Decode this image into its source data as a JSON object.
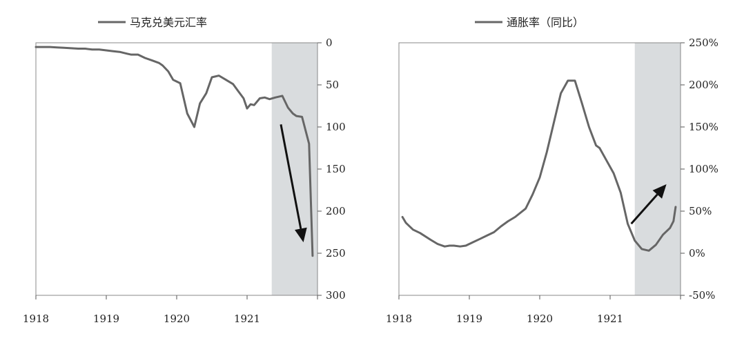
{
  "chart_data": [
    {
      "type": "line",
      "title": "",
      "xlabel": "",
      "ylabel": "",
      "x_ticks": [
        "1918",
        "1919",
        "1920",
        "1921"
      ],
      "xlim": [
        1918,
        1922
      ],
      "y_axis_side": "right",
      "y_inverted": true,
      "ylim": [
        0,
        300
      ],
      "y_ticks": [
        0,
        50,
        100,
        150,
        200,
        250,
        300
      ],
      "y_tick_labels": [
        "0",
        "50",
        "100",
        "150",
        "200",
        "250",
        "300"
      ],
      "grid": false,
      "legend_position": "top-center",
      "shaded_region": [
        1921.35,
        1922
      ],
      "annotations": [
        {
          "type": "arrow",
          "direction": "down",
          "from": [
            1921.48,
            97
          ],
          "to": [
            1921.8,
            237
          ]
        }
      ],
      "series": [
        {
          "name": "马克兑美元汇率",
          "color": "#666666",
          "x": [
            1918.0,
            1918.1,
            1918.2,
            1918.3,
            1918.4,
            1918.5,
            1918.6,
            1918.7,
            1918.8,
            1918.85,
            1918.9,
            1919.0,
            1919.1,
            1919.2,
            1919.3,
            1919.35,
            1919.45,
            1919.55,
            1919.65,
            1919.75,
            1919.8,
            1919.88,
            1919.95,
            1920.05,
            1920.15,
            1920.25,
            1920.33,
            1920.42,
            1920.5,
            1920.6,
            1920.7,
            1920.8,
            1920.87,
            1920.95,
            1921.0,
            1921.05,
            1921.1,
            1921.18,
            1921.25,
            1921.32,
            1921.4,
            1921.5,
            1921.58,
            1921.65,
            1921.7,
            1921.78,
            1921.88,
            1921.93
          ],
          "values": [
            5,
            5,
            5,
            5.5,
            6,
            6.5,
            7,
            7,
            8,
            8,
            8,
            9,
            10,
            11,
            13,
            14,
            14,
            18,
            21,
            24,
            27,
            34,
            44,
            48,
            84,
            100,
            72,
            60,
            41,
            39,
            44,
            49,
            57,
            66,
            78,
            73,
            74,
            66,
            65,
            67,
            65,
            63,
            77,
            84,
            87,
            88,
            120,
            253
          ]
        }
      ]
    },
    {
      "type": "line",
      "title": "",
      "xlabel": "",
      "ylabel": "",
      "x_ticks": [
        "1918",
        "1919",
        "1920",
        "1921"
      ],
      "xlim": [
        1918,
        1922
      ],
      "y_axis_side": "right",
      "ylim": [
        -50,
        250
      ],
      "y_ticks": [
        -50,
        0,
        50,
        100,
        150,
        200,
        250
      ],
      "y_tick_labels": [
        "-50%",
        "0%",
        "50%",
        "100%",
        "150%",
        "200%",
        "250%"
      ],
      "grid": false,
      "legend_position": "top-center",
      "shaded_region": [
        1921.35,
        1922
      ],
      "annotations": [
        {
          "type": "arrow",
          "direction": "up",
          "from": [
            1921.3,
            35
          ],
          "to": [
            1921.8,
            82
          ]
        }
      ],
      "series": [
        {
          "name": "通胀率（同比）",
          "color": "#666666",
          "x": [
            1918.05,
            1918.1,
            1918.2,
            1918.3,
            1918.45,
            1918.55,
            1918.65,
            1918.72,
            1918.78,
            1918.87,
            1918.95,
            1919.05,
            1919.15,
            1919.25,
            1919.35,
            1919.45,
            1919.55,
            1919.65,
            1919.8,
            1919.9,
            1920.0,
            1920.1,
            1920.2,
            1920.3,
            1920.4,
            1920.5,
            1920.6,
            1920.7,
            1920.8,
            1920.85,
            1920.95,
            1921.05,
            1921.15,
            1921.25,
            1921.35,
            1921.45,
            1921.55,
            1921.65,
            1921.75,
            1921.85,
            1921.9,
            1921.93
          ],
          "values": [
            43,
            36,
            28,
            24,
            16,
            11,
            8,
            9,
            9,
            8,
            9,
            13,
            17,
            21,
            25,
            32,
            38,
            43,
            53,
            70,
            90,
            120,
            155,
            190,
            205,
            205,
            178,
            150,
            128,
            125,
            110,
            95,
            72,
            35,
            15,
            5,
            3,
            10,
            22,
            30,
            38,
            55
          ]
        }
      ]
    }
  ]
}
